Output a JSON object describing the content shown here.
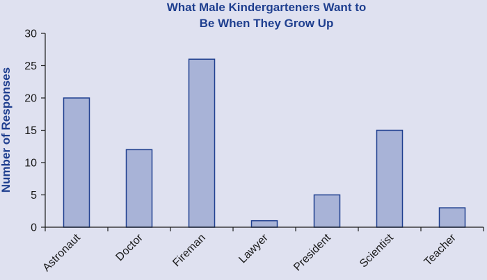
{
  "chart_data": {
    "type": "bar",
    "title_lines": [
      "What Male Kindergarteners Want to",
      "Be When They Grow Up"
    ],
    "xlabel": "",
    "ylabel": "Number of Responses",
    "ylim": [
      0,
      30
    ],
    "yticks": [
      0,
      5,
      10,
      15,
      20,
      25,
      30
    ],
    "grid": false,
    "legend": "none",
    "categories": [
      "Astronaut",
      "Doctor",
      "Fireman",
      "Lawyer",
      "President",
      "Scientist",
      "Teacher"
    ],
    "values": [
      20,
      12,
      26,
      1,
      5,
      15,
      3
    ]
  },
  "colors": {
    "background": "#dfe1f0",
    "bar_fill": "#a8b3d7",
    "bar_stroke": "#1f3f8f",
    "title": "#1f3f8f",
    "axis": "#1a1a1a"
  }
}
